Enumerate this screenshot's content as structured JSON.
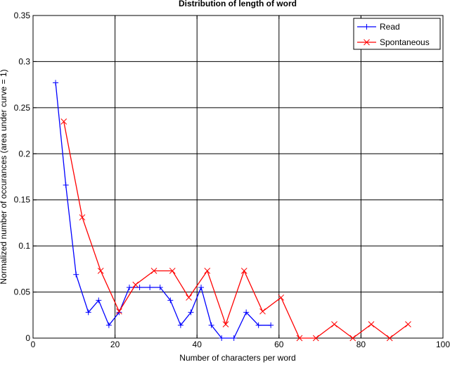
{
  "chart_data": {
    "type": "line",
    "title": "Distribution of length of word",
    "xlabel": "Number of characters per word",
    "ylabel": "Normalized number of occurances (area under curve = 1)",
    "xlim": [
      0,
      100
    ],
    "ylim": [
      0,
      0.35
    ],
    "xticks": [
      0,
      20,
      40,
      60,
      80,
      100
    ],
    "xtick_labels": [
      "0",
      "20",
      "40",
      "60",
      "80",
      "100"
    ],
    "yticks": [
      0,
      0.05,
      0.1,
      0.15,
      0.2,
      0.25,
      0.3,
      0.35
    ],
    "ytick_labels": [
      "0",
      "0.05",
      "0.1",
      "0.15",
      "0.2",
      "0.25",
      "0.3",
      "0.35"
    ],
    "grid": true,
    "legend_position": "top-right",
    "series": [
      {
        "name": "Read",
        "color": "#0000ff",
        "marker": "plus",
        "x": [
          5.5,
          8,
          10.5,
          13.5,
          16,
          18.5,
          21,
          23.5,
          26,
          28.5,
          31,
          33.5,
          36,
          38.5,
          41,
          43.5,
          46,
          49,
          52,
          55,
          58
        ],
        "y": [
          0.277,
          0.166,
          0.069,
          0.028,
          0.041,
          0.014,
          0.028,
          0.055,
          0.055,
          0.055,
          0.055,
          0.041,
          0.014,
          0.028,
          0.055,
          0.014,
          0.0,
          0.0,
          0.028,
          0.014,
          0.014
        ]
      },
      {
        "name": "Spontaneous",
        "color": "#ff0000",
        "marker": "x",
        "x": [
          7.5,
          12,
          16.5,
          21,
          25,
          29.5,
          34,
          38,
          42.5,
          47,
          51.5,
          56,
          60.5,
          65,
          69,
          73.5,
          78,
          82.5,
          87,
          91.5
        ],
        "y": [
          0.235,
          0.131,
          0.073,
          0.029,
          0.058,
          0.073,
          0.073,
          0.044,
          0.073,
          0.015,
          0.073,
          0.029,
          0.044,
          0.0,
          0.0,
          0.015,
          0.0,
          0.015,
          0.0,
          0.015
        ]
      }
    ]
  }
}
